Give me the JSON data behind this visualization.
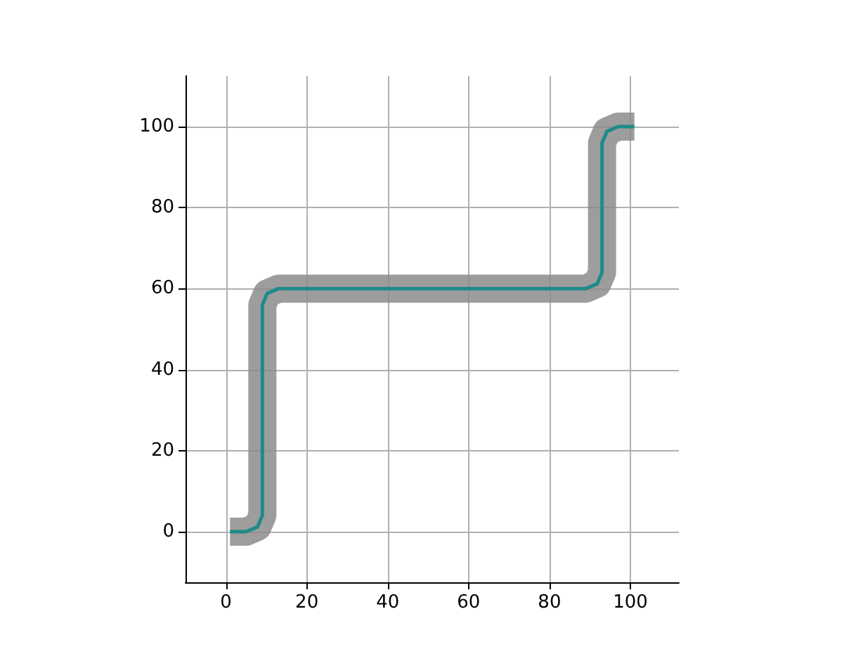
{
  "chart_data": {
    "type": "line",
    "x": [
      1,
      5,
      7.8,
      9,
      9,
      10.2,
      13,
      89,
      91.8,
      93,
      93,
      94.2,
      97,
      101
    ],
    "series": [
      {
        "color": "#8c8c8c",
        "values": [
          0,
          0,
          1.2,
          4,
          56,
          58.8,
          60,
          60,
          61.2,
          64,
          96,
          98.8,
          100,
          100
        ]
      },
      {
        "color": "#1f8a8a",
        "values": [
          0,
          0,
          1.2,
          4,
          56,
          58.8,
          60,
          60,
          61.2,
          64,
          96,
          98.8,
          100,
          100
        ]
      }
    ],
    "xlim": [
      -10,
      112
    ],
    "ylim": [
      -12.5,
      112.5
    ],
    "xticks": [
      0,
      20,
      40,
      60,
      80,
      100
    ],
    "yticks": [
      0,
      20,
      40,
      60,
      80,
      100
    ],
    "grid": true,
    "marker": "none",
    "line_style": "solid"
  }
}
